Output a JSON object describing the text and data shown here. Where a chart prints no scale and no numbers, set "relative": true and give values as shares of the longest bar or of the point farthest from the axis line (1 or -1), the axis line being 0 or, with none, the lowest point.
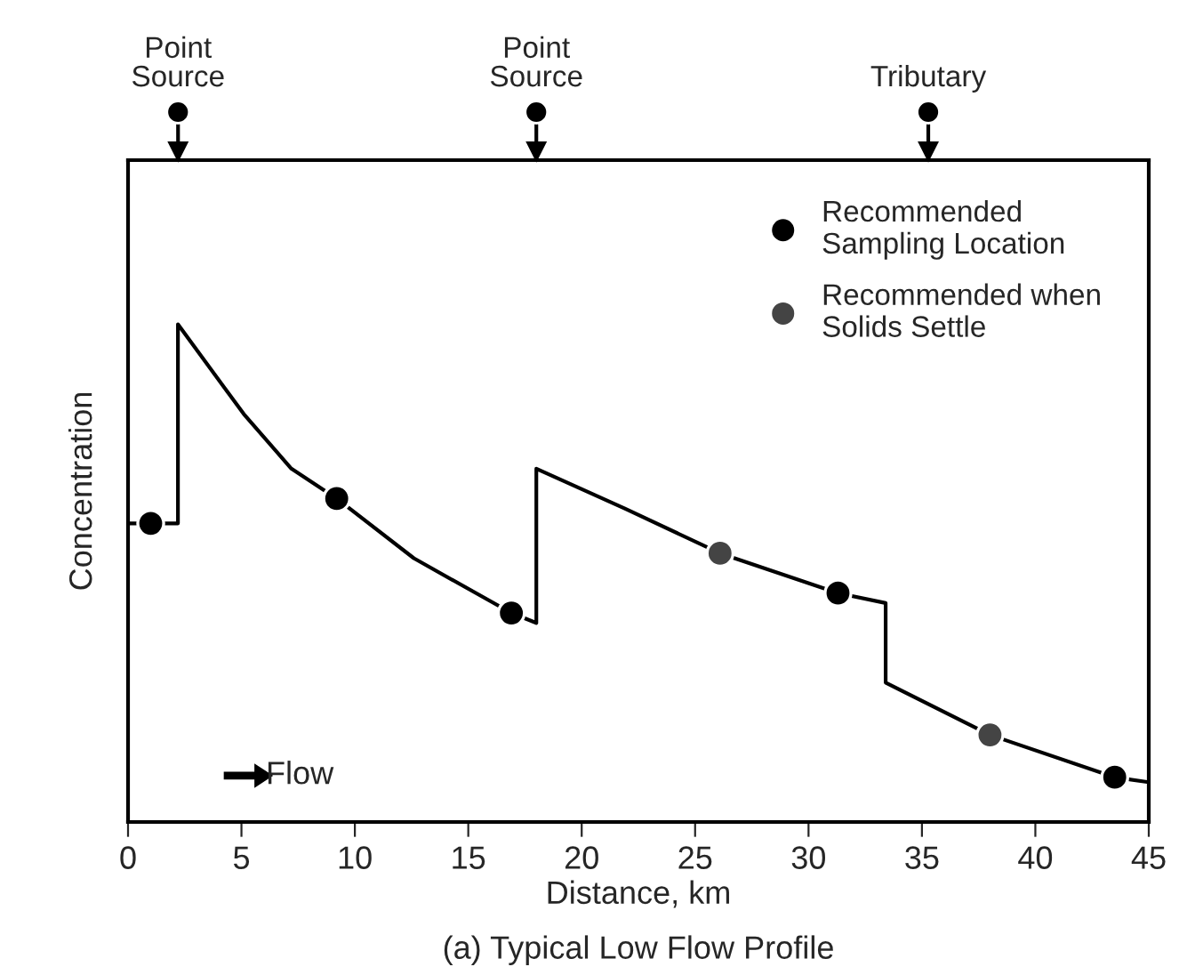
{
  "chart_data": {
    "type": "line",
    "title": "(a) Typical Low Flow Profile",
    "xlabel": "Distance, km",
    "ylabel": "Concentration",
    "relative": true,
    "xlim": [
      0,
      45
    ],
    "xticks": [
      0,
      5,
      10,
      15,
      20,
      25,
      30,
      35,
      40,
      45
    ],
    "grid": false,
    "legend": "top right",
    "annotations": [
      "Point\nSource",
      "Point\nSource",
      "Tributary",
      "Flow"
    ],
    "series": [
      {
        "type": "line",
        "color": "#000000",
        "line_style": "solid",
        "marker": "none",
        "x": [
          0,
          2.2,
          2.2,
          5.1,
          7.2,
          9.2,
          12.6,
          16.9,
          18.0,
          18.0,
          21.9,
          26.1,
          31.3,
          33.4,
          33.4,
          38.0,
          43.5,
          45
        ],
        "values": [
          0.6,
          0.6,
          1.0,
          0.82,
          0.71,
          0.65,
          0.53,
          0.42,
          0.4,
          0.71,
          0.63,
          0.54,
          0.46,
          0.44,
          0.28,
          0.175,
          0.09,
          0.08
        ]
      },
      {
        "type": "scatter",
        "name": "Recommended\nSampling Location",
        "color": "#000000",
        "marker": "circle",
        "x": [
          1.0,
          9.2,
          16.9,
          31.3,
          43.5
        ],
        "values": [
          0.6,
          0.65,
          0.42,
          0.46,
          0.09
        ]
      },
      {
        "type": "scatter",
        "name": "Recommended when\nSolids Settle",
        "color": "#444444",
        "marker": "circle",
        "x": [
          26.1,
          38.0
        ],
        "values": [
          0.54,
          0.175
        ]
      }
    ]
  }
}
